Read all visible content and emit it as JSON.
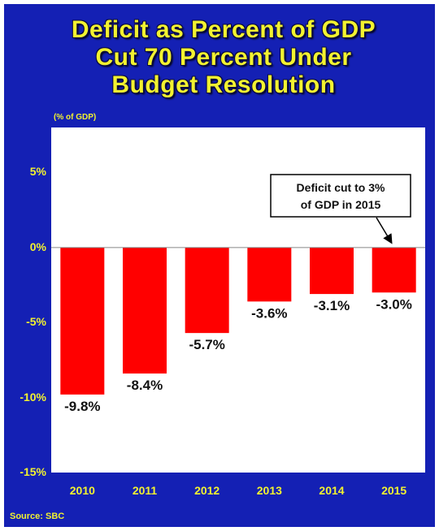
{
  "title_lines": [
    "Deficit as Percent of GDP",
    "Cut 70 Percent Under",
    "Budget Resolution"
  ],
  "unit_label": "(% of GDP)",
  "source": "Source: SBC",
  "annotation": [
    "Deficit cut to 3%",
    "of GDP in 2015"
  ],
  "colors": {
    "background": "#1420b4",
    "title": "#f2f230",
    "bar": "#ff0000"
  },
  "chart_data": {
    "type": "bar",
    "categories": [
      "2010",
      "2011",
      "2012",
      "2013",
      "2014",
      "2015"
    ],
    "values": [
      -9.8,
      -8.4,
      -5.7,
      -3.6,
      -3.1,
      -3.0
    ],
    "data_labels": [
      "-9.8%",
      "-8.4%",
      "-5.7%",
      "-3.6%",
      "-3.1%",
      "-3.0%"
    ],
    "ylim": [
      -15,
      8
    ],
    "yticks": [
      5,
      0,
      -5,
      -10,
      -15
    ],
    "ytick_labels": [
      "5%",
      "0%",
      "-5%",
      "-10%",
      "-15%"
    ],
    "grid": false,
    "title": "Deficit as Percent of GDP Cut 70 Percent Under Budget Resolution",
    "ylabel": "(% of GDP)"
  }
}
